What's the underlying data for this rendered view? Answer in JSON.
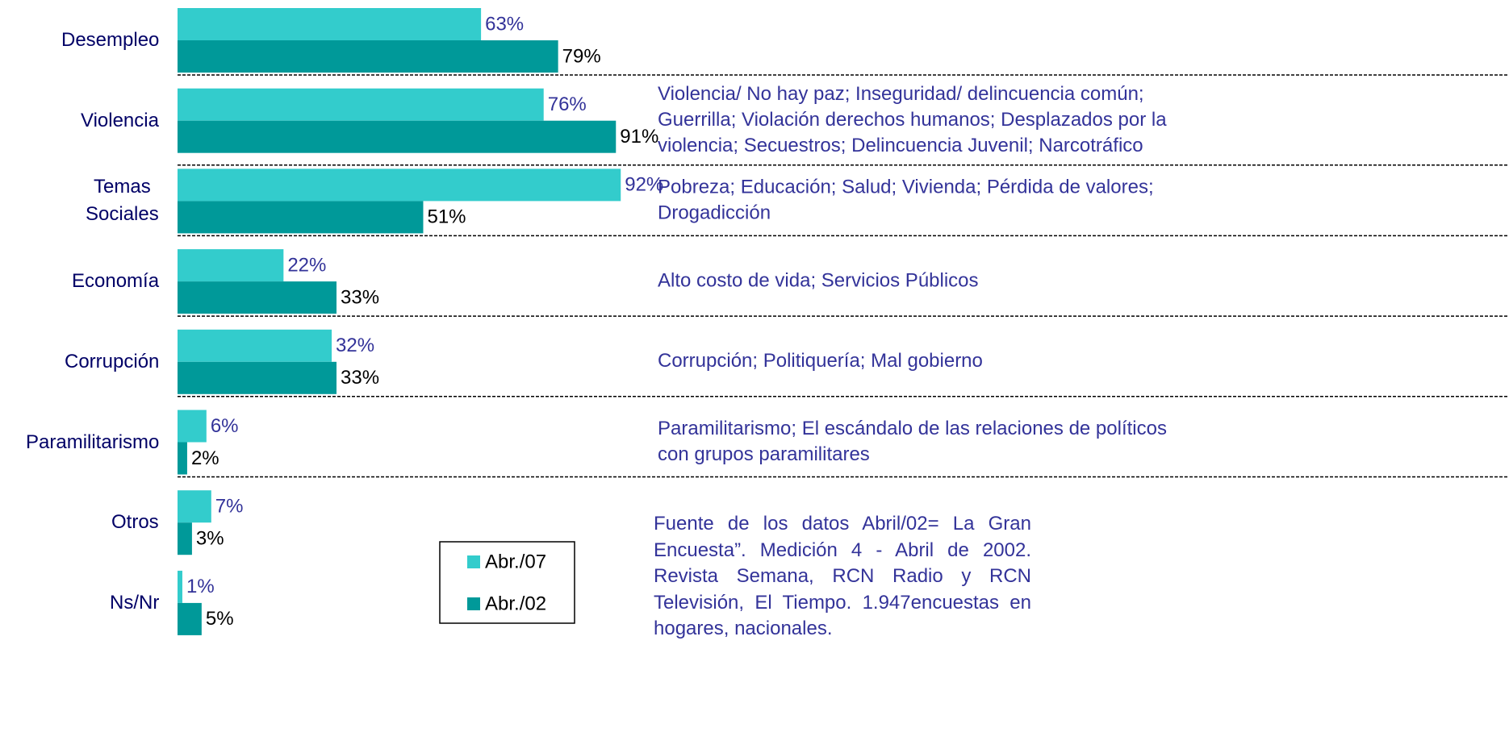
{
  "chart_data": {
    "type": "barh",
    "categories": [
      "Desempleo",
      "Violencia",
      "Temas Sociales",
      "Economía",
      "Corrupción",
      "Paramilitarismo",
      "Otros",
      "Ns/Nr"
    ],
    "series": [
      {
        "name": "Abr./07",
        "color": "#33cccc",
        "values": [
          63,
          76,
          92,
          22,
          32,
          6,
          7,
          1
        ],
        "value_labels": [
          "63%",
          "76%",
          "92%",
          "22%",
          "32%",
          "6%",
          "7%",
          "1%"
        ]
      },
      {
        "name": "Abr./02",
        "color": "#009999",
        "values": [
          79,
          91,
          51,
          33,
          33,
          2,
          3,
          5
        ],
        "value_labels": [
          "79%",
          "91%",
          "51%",
          "33%",
          "33%",
          "2%",
          "3%",
          "5%"
        ]
      }
    ],
    "xlim": [
      0,
      100
    ],
    "descriptions": [
      null,
      [
        "Violencia/ No hay paz; Inseguridad/ delincuencia común;",
        "Guerrilla; Violación derechos humanos; Desplazados por la",
        "violencia; Secuestros; Delincuencia Juvenil; Narcotráfico"
      ],
      [
        "Pobreza; Educación; Salud; Vivienda; Pérdida de valores;",
        "Drogadicción"
      ],
      [
        "Alto costo de vida; Servicios Públicos"
      ],
      [
        "Corrupción; Politiquería; Mal gobierno"
      ],
      [
        "Paramilitarismo; El escándalo de las relaciones de políticos",
        "con grupos paramilitares"
      ],
      null,
      null
    ],
    "source_note": "Fuente de los datos Abril/02= La Gran Encuesta”. Medición 4 - Abril de 2002. Revista Semana, RCN Radio y RCN Televisión, El Tiempo. 1.947encuestas en hogares, nacionales."
  }
}
